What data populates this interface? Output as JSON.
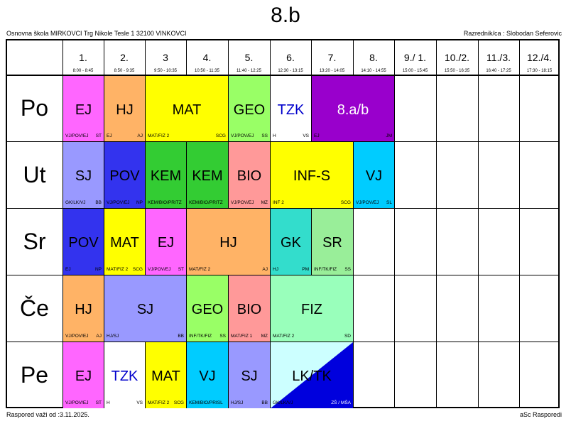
{
  "title": "8.b",
  "school_line": "Osnovna škola MIRKOVCI Trg Nikole Tesle 1 32100 VINKOVCI",
  "teacher_line": "Razrednik/ca : Slobodan Seferovic",
  "footer_left": "Raspored važi od :3.11.2025.",
  "footer_right": "aSc Rasporedi",
  "periods": [
    {
      "num": "1.",
      "time": "8:00 - 8:45"
    },
    {
      "num": "2.",
      "time": "8:50 - 9:35"
    },
    {
      "num": "3",
      "time": "9:50 - 10:35"
    },
    {
      "num": "4.",
      "time": "10:50 - 11:35"
    },
    {
      "num": "5.",
      "time": "11:40 - 12:25"
    },
    {
      "num": "6.",
      "time": "12:30 - 13:15"
    },
    {
      "num": "7.",
      "time": "13:20 - 14:05"
    },
    {
      "num": "8.",
      "time": "14:10 - 14:55"
    },
    {
      "num": "9./ 1.",
      "time": "15:00 - 15:45"
    },
    {
      "num": "10./2.",
      "time": "15:50 - 16:35"
    },
    {
      "num": "11./3.",
      "time": "16:40 - 17:25"
    },
    {
      "num": "12./4.",
      "time": "17:30 - 18:15"
    }
  ],
  "days": [
    {
      "label": "Po",
      "lessons": [
        {
          "start": 1,
          "span": 1,
          "subject": "EJ",
          "group": "VJ/POV/EJ",
          "teacher": "ST",
          "color": "#ff66ff",
          "text_color": "#000000"
        },
        {
          "start": 2,
          "span": 1,
          "subject": "HJ",
          "group": "EJ",
          "teacher": "AJ",
          "color": "#ffb366",
          "text_color": "#000000"
        },
        {
          "start": 3,
          "span": 2,
          "subject": "MAT",
          "group": "MAT/FIZ 2",
          "teacher": "SCG",
          "color": "#ffff00",
          "text_color": "#000000"
        },
        {
          "start": 5,
          "span": 1,
          "subject": "GEO",
          "group": "VJ/POV/EJ",
          "teacher": "SS",
          "color": "#99ff66",
          "text_color": "#000000"
        },
        {
          "start": 6,
          "span": 1,
          "subject": "TZK",
          "group": "H",
          "teacher": "VS",
          "color": "#ffffff",
          "text_color": "#0000cc"
        },
        {
          "start": 7,
          "span": 2,
          "subject": "8.a/b",
          "group": "EJ",
          "teacher": "JM",
          "color": "#9900cc",
          "text_color": "#ffffff"
        }
      ]
    },
    {
      "label": "Ut",
      "lessons": [
        {
          "start": 1,
          "span": 1,
          "subject": "SJ",
          "group": "GK/LK/VJ",
          "teacher": "BB",
          "color": "#9999ff",
          "text_color": "#000000"
        },
        {
          "start": 2,
          "span": 1,
          "subject": "POV",
          "group": "VJ/POV/EJ",
          "teacher": "NP",
          "color": "#3333ee",
          "text_color": "#000000"
        },
        {
          "start": 3,
          "span": 1,
          "subject": "KEM",
          "group": "KEM/BIO/PRITZ",
          "teacher": "",
          "color": "#33cc33",
          "text_color": "#000000"
        },
        {
          "start": 4,
          "span": 1,
          "subject": "KEM",
          "group": "KEM/BIO/PRITZ",
          "teacher": "",
          "color": "#33cc33",
          "text_color": "#000000"
        },
        {
          "start": 5,
          "span": 1,
          "subject": "BIO",
          "group": "VJ/POV/EJ",
          "teacher": "MZ",
          "color": "#ff9999",
          "text_color": "#000000"
        },
        {
          "start": 6,
          "span": 2,
          "subject": "INF-S",
          "group": "INF 2",
          "teacher": "SCG",
          "color": "#ffff00",
          "text_color": "#000000"
        },
        {
          "start": 8,
          "span": 1,
          "subject": "VJ",
          "group": "VJ/POV/EJ",
          "teacher": "SL",
          "color": "#00ccff",
          "text_color": "#000000"
        }
      ]
    },
    {
      "label": "Sr",
      "lessons": [
        {
          "start": 1,
          "span": 1,
          "subject": "POV",
          "group": "EJ",
          "teacher": "NP",
          "color": "#3333ee",
          "text_color": "#000000"
        },
        {
          "start": 2,
          "span": 1,
          "subject": "MAT",
          "group": "MAT/FIZ 2",
          "teacher": "SCG",
          "color": "#ffff00",
          "text_color": "#000000"
        },
        {
          "start": 3,
          "span": 1,
          "subject": "EJ",
          "group": "VJ/POV/EJ",
          "teacher": "ST",
          "color": "#ff66ff",
          "text_color": "#000000"
        },
        {
          "start": 4,
          "span": 2,
          "subject": "HJ",
          "group": "MAT/FIZ 2",
          "teacher": "AJ",
          "color": "#ffb366",
          "text_color": "#000000"
        },
        {
          "start": 6,
          "span": 1,
          "subject": "GK",
          "group": "HJ",
          "teacher": "PM",
          "color": "#33ddcc",
          "text_color": "#000000"
        },
        {
          "start": 7,
          "span": 1,
          "subject": "SR",
          "group": "INF/TK/FIZ",
          "teacher": "SS",
          "color": "#99ee99",
          "text_color": "#000000"
        }
      ]
    },
    {
      "label": "Če",
      "lessons": [
        {
          "start": 1,
          "span": 1,
          "subject": "HJ",
          "group": "VJ/POV/EJ",
          "teacher": "AJ",
          "color": "#ffb366",
          "text_color": "#000000"
        },
        {
          "start": 2,
          "span": 2,
          "subject": "SJ",
          "group": "HJ/SJ",
          "teacher": "BB",
          "color": "#9999ff",
          "text_color": "#000000"
        },
        {
          "start": 4,
          "span": 1,
          "subject": "GEO",
          "group": "INF/TK/FIZ",
          "teacher": "SS",
          "color": "#99ff66",
          "text_color": "#000000"
        },
        {
          "start": 5,
          "span": 1,
          "subject": "BIO",
          "group": "MAT/FIZ 1",
          "teacher": "MZ",
          "color": "#ff9999",
          "text_color": "#000000"
        },
        {
          "start": 6,
          "span": 2,
          "subject": "FIZ",
          "group": "MAT/FIZ 2",
          "teacher": "SD",
          "color": "#99ffbb",
          "text_color": "#000000"
        }
      ]
    },
    {
      "label": "Pe",
      "lessons": [
        {
          "start": 1,
          "span": 1,
          "subject": "EJ",
          "group": "VJ/POV/EJ",
          "teacher": "ST",
          "color": "#ff66ff",
          "text_color": "#000000"
        },
        {
          "start": 2,
          "span": 1,
          "subject": "TZK",
          "group": "H",
          "teacher": "VS",
          "color": "#ffffff",
          "text_color": "#0000cc"
        },
        {
          "start": 3,
          "span": 1,
          "subject": "MAT",
          "group": "MAT/FIZ 2",
          "teacher": "SCG",
          "color": "#ffff00",
          "text_color": "#000000"
        },
        {
          "start": 4,
          "span": 1,
          "subject": "VJ",
          "group": "KEM/BIO/PRISL",
          "teacher": "",
          "color": "#00ccff",
          "text_color": "#000000"
        },
        {
          "start": 5,
          "span": 1,
          "subject": "SJ",
          "group": "HJ/SJ",
          "teacher": "BB",
          "color": "#9999ff",
          "text_color": "#000000"
        },
        {
          "start": 6,
          "span": 2,
          "subject": "LK/TK",
          "group": "GK/LK/VJ",
          "teacher": "ZŠ / MŠA",
          "color": "#ccffff",
          "color2": "#0000dd",
          "text_color": "#000000"
        }
      ]
    }
  ]
}
